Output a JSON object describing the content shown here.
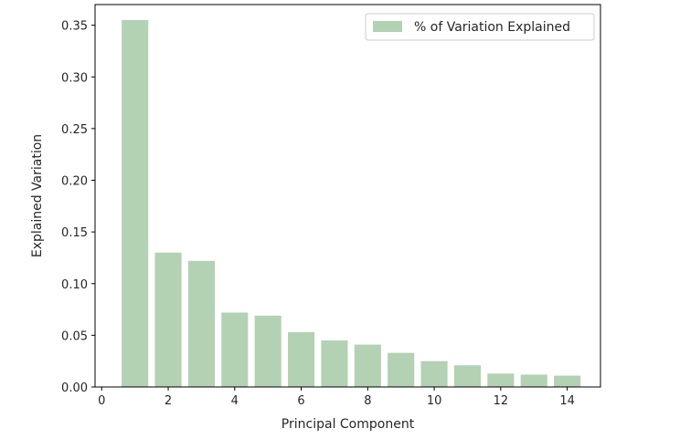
{
  "chart_data": {
    "type": "bar",
    "title": "",
    "xlabel": "Principal Component",
    "ylabel": "Explained Variation",
    "categories": [
      1,
      2,
      3,
      4,
      5,
      6,
      7,
      8,
      9,
      10,
      11,
      12,
      13,
      14
    ],
    "series": [
      {
        "name": "% of Variation Explained",
        "color": "#b3d1b3",
        "values": [
          0.355,
          0.13,
          0.122,
          0.072,
          0.069,
          0.053,
          0.045,
          0.041,
          0.033,
          0.025,
          0.021,
          0.013,
          0.012,
          0.011
        ]
      }
    ],
    "xlim": [
      -0.2,
      15.0
    ],
    "ylim": [
      0,
      0.37
    ],
    "xticks": [
      0,
      2,
      4,
      6,
      8,
      10,
      12,
      14
    ],
    "xtick_labels": [
      "0",
      "2",
      "4",
      "6",
      "8",
      "10",
      "12",
      "14"
    ],
    "yticks": [
      0,
      0.05,
      0.1,
      0.15,
      0.2,
      0.25,
      0.3,
      0.35
    ],
    "ytick_labels": [
      "0.00",
      "0.05",
      "0.10",
      "0.15",
      "0.20",
      "0.25",
      "0.30",
      "0.35"
    ],
    "grid": false,
    "legend_position": "top-right"
  }
}
